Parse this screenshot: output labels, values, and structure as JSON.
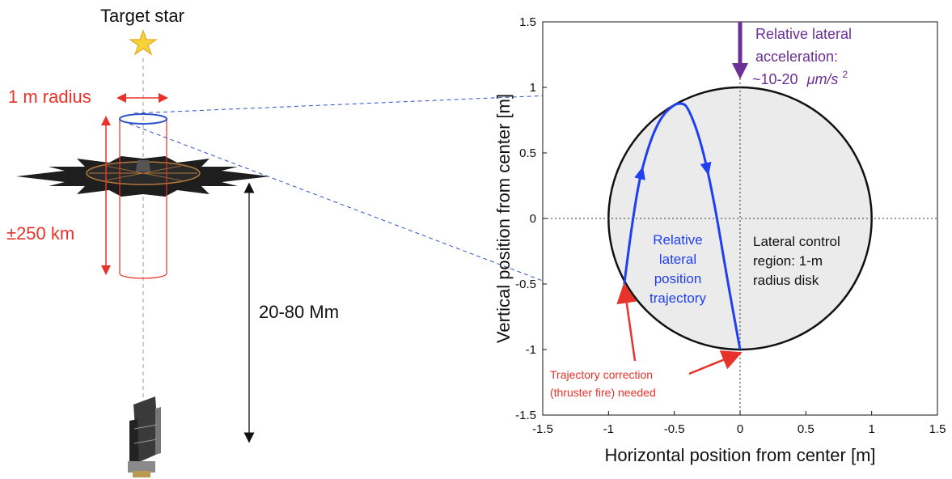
{
  "left_panel": {
    "target_label": "Target star",
    "radius_label": "1 m radius",
    "range_label": "±250 km",
    "distance_label": "20-80 Mm"
  },
  "plot": {
    "xlabel": "Horizontal position from center [m]",
    "ylabel": "Vertical position from center [m]",
    "xlim": [
      -1.5,
      1.5
    ],
    "ylim": [
      -1.5,
      1.5
    ],
    "x_ticks": [
      "-1.5",
      "-1",
      "-0.5",
      "0",
      "0.5",
      "1",
      "1.5"
    ],
    "y_ticks": [
      "1.5",
      "1",
      "0.5",
      "0",
      "-0.5",
      "-1",
      "-1.5"
    ],
    "accel_line1": "Relative lateral",
    "accel_line2": "acceleration:",
    "accel_line3": "~10-20",
    "accel_unit": "μm/s",
    "accel_exp": "2",
    "traj_line1": "Relative",
    "traj_line2": "lateral",
    "traj_line3": "position",
    "traj_line4": "trajectory",
    "region_line1": "Lateral control",
    "region_line2": "region: 1-m",
    "region_line3": "radius disk",
    "correction_line1": "Trajectory correction",
    "correction_line2": "(thruster fire) needed"
  },
  "colors": {
    "red": "#e8332a",
    "blue": "#1f3ff0",
    "purple": "#6b2f96",
    "disk_fill": "#ebebeb",
    "star": "#f7d33a"
  },
  "chart_data": {
    "type": "line",
    "title": "",
    "xlabel": "Horizontal position from center [m]",
    "ylabel": "Vertical position from center [m]",
    "xlim": [
      -1.5,
      1.5
    ],
    "ylim": [
      -1.5,
      1.5
    ],
    "grid": false,
    "circle": {
      "center": [
        0,
        0
      ],
      "radius": 1
    },
    "series": [
      {
        "x": [
          -0.88,
          -0.8,
          -0.7,
          -0.6,
          -0.5,
          -0.45,
          -0.4,
          -0.3,
          -0.2,
          -0.1,
          0.0
        ],
        "y": [
          -0.5,
          0.15,
          0.55,
          0.78,
          0.87,
          0.88,
          0.86,
          0.6,
          0.15,
          -0.45,
          -1.0
        ]
      }
    ]
  }
}
